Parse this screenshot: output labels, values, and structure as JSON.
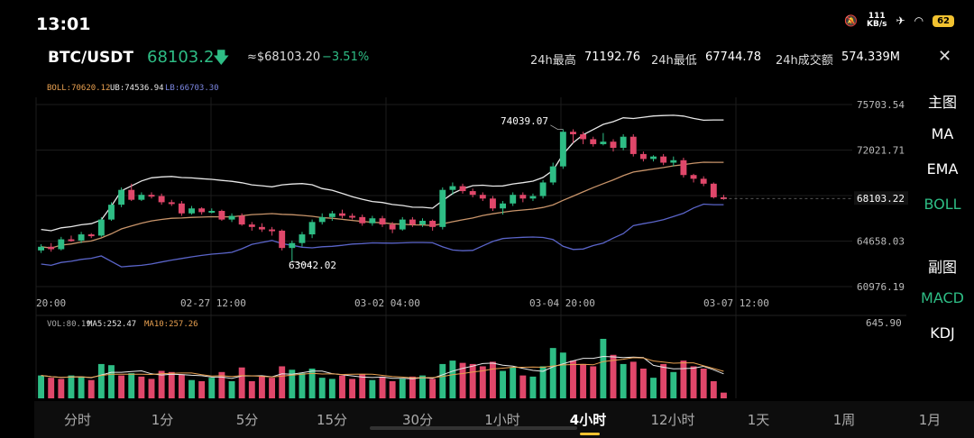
{
  "status_bar": {
    "time": "13:01",
    "net_speed": "111",
    "net_unit": "KB/s",
    "battery": "62"
  },
  "header": {
    "pair": "BTC/USDT",
    "price": "68103.2",
    "approx_price": "≈$68103.20",
    "change": "−3.51%",
    "high_label": "24h最高",
    "high_value": "71192.76",
    "low_label": "24h最低",
    "low_value": "67744.78",
    "vol_label": "24h成交额",
    "vol_value": "574.339M"
  },
  "boll_legend": {
    "boll": "BOLL:70620.12",
    "ub": "UB:74536.94",
    "lb": "LB:66703.30"
  },
  "vol_legend": {
    "vol": "VOL:80.19",
    "ma5": "MA5:252.47",
    "ma10": "MA10:257.26"
  },
  "price_axis": [
    "75703.54",
    "72021.71",
    "68103.22",
    "64658.03",
    "60976.19"
  ],
  "vol_axis_max": "645.90",
  "time_axis": [
    "20:00",
    "02-27 12:00",
    "03-02 04:00",
    "03-04 20:00",
    "03-07 12:00"
  ],
  "annotations": {
    "high": "74039.07",
    "low": "63042.02"
  },
  "right_menu": [
    {
      "label": "主图",
      "active": false
    },
    {
      "label": "MA",
      "active": false
    },
    {
      "label": "EMA",
      "active": false
    },
    {
      "label": "BOLL",
      "active": true
    },
    {
      "label": "副图",
      "active": false
    },
    {
      "label": "MACD",
      "active": true
    },
    {
      "label": "KDJ",
      "active": false
    }
  ],
  "bottom_tabs": [
    {
      "label": "分时"
    },
    {
      "label": "1分"
    },
    {
      "label": "5分"
    },
    {
      "label": "15分"
    },
    {
      "label": "30分"
    },
    {
      "label": "1小时"
    },
    {
      "label": "4小时",
      "active": true
    },
    {
      "label": "12小时"
    },
    {
      "label": "1天"
    },
    {
      "label": "1周"
    },
    {
      "label": "1月"
    }
  ],
  "colors": {
    "up": "#2ebd85",
    "down": "#e0476a",
    "ub": "#e8e8e8",
    "mid": "#c8946a",
    "lb": "#5a64c8"
  },
  "chart_data": {
    "type": "candlestick",
    "price_range": [
      60976.19,
      75703.54
    ],
    "vol_range": [
      0,
      645.9
    ],
    "candles": [
      [
        63900,
        64200,
        63700,
        64400,
        "up"
      ],
      [
        64200,
        64000,
        63800,
        64500,
        "down"
      ],
      [
        64000,
        64800,
        63900,
        65000,
        "up"
      ],
      [
        64800,
        64700,
        64600,
        65100,
        "down"
      ],
      [
        64700,
        65200,
        64500,
        65400,
        "up"
      ],
      [
        65200,
        65100,
        64900,
        65300,
        "down"
      ],
      [
        65100,
        66400,
        65000,
        66600,
        "up"
      ],
      [
        66400,
        67600,
        66300,
        67800,
        "up"
      ],
      [
        67600,
        68800,
        67400,
        69000,
        "up"
      ],
      [
        68800,
        68000,
        67900,
        69300,
        "down"
      ],
      [
        68000,
        68400,
        67900,
        68600,
        "up"
      ],
      [
        68400,
        68300,
        68100,
        68600,
        "down"
      ],
      [
        68300,
        67800,
        67600,
        68500,
        "down"
      ],
      [
        67800,
        67700,
        67500,
        68000,
        "down"
      ],
      [
        67700,
        66900,
        66700,
        67900,
        "down"
      ],
      [
        66900,
        67300,
        66800,
        67500,
        "up"
      ],
      [
        67300,
        67000,
        66800,
        67400,
        "down"
      ],
      [
        67000,
        67100,
        66900,
        67300,
        "up"
      ],
      [
        67100,
        66400,
        66300,
        67200,
        "down"
      ],
      [
        66400,
        66700,
        66200,
        66900,
        "up"
      ],
      [
        66700,
        66000,
        65900,
        66900,
        "down"
      ],
      [
        66000,
        65800,
        65500,
        66200,
        "down"
      ],
      [
        65800,
        65600,
        65400,
        66100,
        "down"
      ],
      [
        65600,
        65500,
        65100,
        65800,
        "down"
      ],
      [
        65500,
        64100,
        63900,
        65600,
        "down"
      ],
      [
        64100,
        64500,
        63042,
        64700,
        "up"
      ],
      [
        64500,
        65200,
        64200,
        65400,
        "up"
      ],
      [
        65200,
        66200,
        64900,
        66400,
        "up"
      ],
      [
        66200,
        66600,
        66000,
        66900,
        "up"
      ],
      [
        66600,
        66900,
        66300,
        67100,
        "up"
      ],
      [
        66900,
        66700,
        66500,
        67200,
        "down"
      ],
      [
        66700,
        66600,
        66400,
        66900,
        "down"
      ],
      [
        66600,
        66100,
        65900,
        66800,
        "down"
      ],
      [
        66100,
        66500,
        65900,
        66700,
        "up"
      ],
      [
        66500,
        66000,
        65800,
        66700,
        "down"
      ],
      [
        66000,
        65600,
        65300,
        66200,
        "down"
      ],
      [
        65600,
        66400,
        65500,
        66600,
        "up"
      ],
      [
        66400,
        66000,
        65800,
        66600,
        "down"
      ],
      [
        66000,
        66300,
        65800,
        66500,
        "up"
      ],
      [
        66300,
        65800,
        65500,
        66400,
        "down"
      ],
      [
        65800,
        68800,
        65600,
        69000,
        "up"
      ],
      [
        68800,
        69100,
        68400,
        69400,
        "up"
      ],
      [
        69100,
        68700,
        68500,
        69300,
        "down"
      ],
      [
        68700,
        68400,
        68200,
        68900,
        "down"
      ],
      [
        68400,
        68100,
        67900,
        68600,
        "down"
      ],
      [
        68100,
        67300,
        67100,
        68300,
        "down"
      ],
      [
        67300,
        67700,
        66800,
        67900,
        "up"
      ],
      [
        67700,
        68400,
        67500,
        68600,
        "up"
      ],
      [
        68400,
        68100,
        67800,
        68600,
        "down"
      ],
      [
        68100,
        68300,
        67900,
        68500,
        "up"
      ],
      [
        68300,
        69400,
        68100,
        69600,
        "up"
      ],
      [
        69400,
        70700,
        69200,
        71000,
        "up"
      ],
      [
        70700,
        73500,
        70500,
        73700,
        "up"
      ],
      [
        73500,
        73300,
        72600,
        73700,
        "down"
      ],
      [
        73300,
        72900,
        72500,
        73500,
        "down"
      ],
      [
        72900,
        72500,
        72300,
        73100,
        "down"
      ],
      [
        72500,
        72700,
        72400,
        73400,
        "up"
      ],
      [
        72700,
        72200,
        71900,
        72900,
        "down"
      ],
      [
        72200,
        73100,
        72000,
        73300,
        "up"
      ],
      [
        73100,
        71700,
        71500,
        73300,
        "down"
      ],
      [
        71700,
        71300,
        71100,
        71900,
        "down"
      ],
      [
        71300,
        71500,
        71100,
        71600,
        "up"
      ],
      [
        71500,
        71000,
        70800,
        71700,
        "down"
      ],
      [
        71000,
        71200,
        70700,
        71500,
        "up"
      ],
      [
        71200,
        70000,
        69800,
        71400,
        "down"
      ],
      [
        70000,
        69700,
        69400,
        70100,
        "down"
      ],
      [
        69700,
        69300,
        69100,
        69900,
        "down"
      ],
      [
        69300,
        68200,
        68100,
        69400,
        "down"
      ],
      [
        68200,
        68103,
        68000,
        68400,
        "down"
      ]
    ],
    "volumes": [
      [
        200,
        "up"
      ],
      [
        180,
        "down"
      ],
      [
        170,
        "down"
      ],
      [
        200,
        "up"
      ],
      [
        190,
        "up"
      ],
      [
        160,
        "down"
      ],
      [
        300,
        "up"
      ],
      [
        290,
        "up"
      ],
      [
        200,
        "down"
      ],
      [
        220,
        "up"
      ],
      [
        190,
        "down"
      ],
      [
        170,
        "down"
      ],
      [
        240,
        "down"
      ],
      [
        230,
        "down"
      ],
      [
        210,
        "down"
      ],
      [
        160,
        "up"
      ],
      [
        150,
        "down"
      ],
      [
        180,
        "up"
      ],
      [
        230,
        "down"
      ],
      [
        150,
        "up"
      ],
      [
        270,
        "down"
      ],
      [
        150,
        "down"
      ],
      [
        190,
        "down"
      ],
      [
        180,
        "down"
      ],
      [
        280,
        "down"
      ],
      [
        250,
        "up"
      ],
      [
        220,
        "up"
      ],
      [
        260,
        "up"
      ],
      [
        180,
        "up"
      ],
      [
        170,
        "up"
      ],
      [
        200,
        "down"
      ],
      [
        170,
        "down"
      ],
      [
        210,
        "down"
      ],
      [
        160,
        "up"
      ],
      [
        190,
        "down"
      ],
      [
        150,
        "down"
      ],
      [
        170,
        "up"
      ],
      [
        190,
        "down"
      ],
      [
        200,
        "up"
      ],
      [
        170,
        "down"
      ],
      [
        300,
        "up"
      ],
      [
        330,
        "up"
      ],
      [
        310,
        "down"
      ],
      [
        300,
        "down"
      ],
      [
        280,
        "down"
      ],
      [
        320,
        "down"
      ],
      [
        240,
        "up"
      ],
      [
        270,
        "up"
      ],
      [
        200,
        "down"
      ],
      [
        190,
        "up"
      ],
      [
        280,
        "up"
      ],
      [
        440,
        "up"
      ],
      [
        400,
        "up"
      ],
      [
        330,
        "down"
      ],
      [
        300,
        "down"
      ],
      [
        280,
        "down"
      ],
      [
        520,
        "up"
      ],
      [
        380,
        "down"
      ],
      [
        300,
        "up"
      ],
      [
        320,
        "down"
      ],
      [
        260,
        "down"
      ],
      [
        180,
        "up"
      ],
      [
        300,
        "down"
      ],
      [
        230,
        "up"
      ],
      [
        330,
        "down"
      ],
      [
        280,
        "down"
      ],
      [
        260,
        "down"
      ],
      [
        150,
        "down"
      ],
      [
        50,
        "down"
      ]
    ]
  }
}
